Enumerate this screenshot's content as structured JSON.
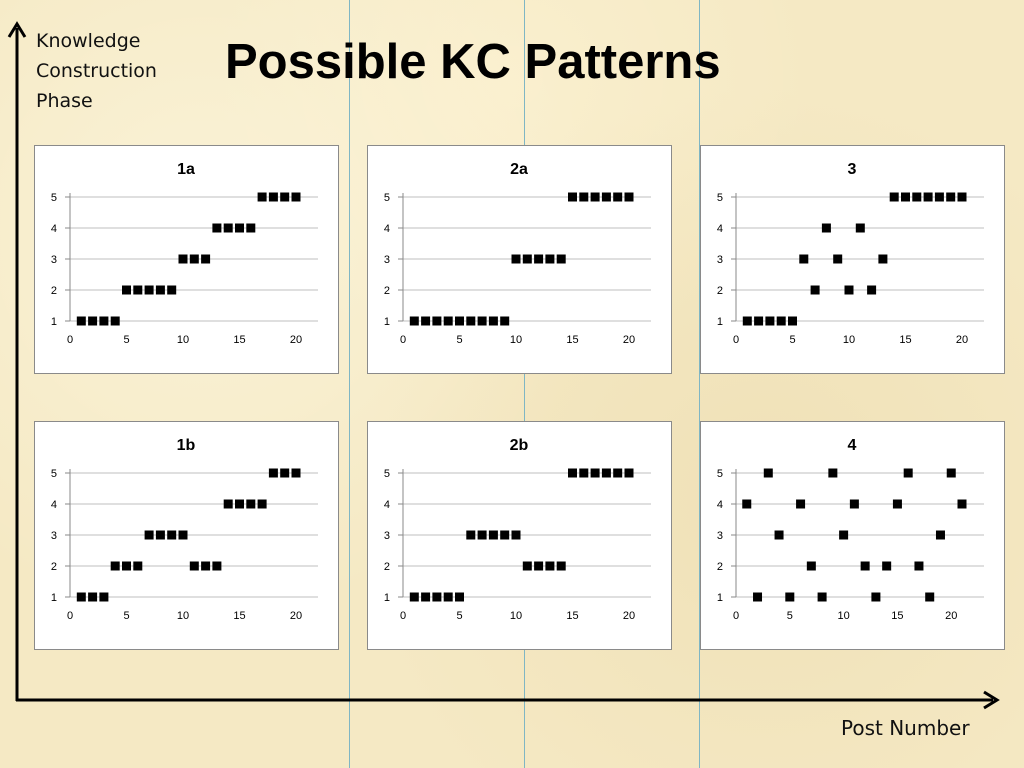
{
  "page": {
    "title": "Possible KC Patterns",
    "y_axis_label": "Knowledge\nConstruction\nPhase",
    "x_axis_label": "Post Number"
  },
  "colors": {
    "background": "#f5e9c4",
    "marker": "#000000",
    "gridline": "#bfbfbf",
    "guide_line": "#7fb6c4"
  },
  "chart_data": [
    {
      "type": "scatter",
      "title": "1a",
      "xlim": [
        0,
        20
      ],
      "ylim": [
        1,
        5
      ],
      "xticks": [
        0,
        5,
        10,
        15,
        20
      ],
      "yticks": [
        1,
        2,
        3,
        4,
        5
      ],
      "grid": "horizontal",
      "marker": "square",
      "series": [
        {
          "x": [
            1,
            2,
            3,
            4,
            5,
            6,
            7,
            8,
            9,
            10,
            11,
            12,
            13,
            14,
            15,
            16,
            17,
            18,
            19,
            20
          ],
          "y": [
            1,
            1,
            1,
            1,
            2,
            2,
            2,
            2,
            2,
            3,
            3,
            3,
            4,
            4,
            4,
            4,
            5,
            5,
            5,
            5
          ]
        }
      ]
    },
    {
      "type": "scatter",
      "title": "2a",
      "xlim": [
        0,
        20
      ],
      "ylim": [
        1,
        5
      ],
      "xticks": [
        0,
        5,
        10,
        15,
        20
      ],
      "yticks": [
        1,
        2,
        3,
        4,
        5
      ],
      "grid": "horizontal",
      "marker": "square",
      "series": [
        {
          "x": [
            1,
            2,
            3,
            4,
            5,
            6,
            7,
            8,
            9,
            10,
            11,
            12,
            13,
            14,
            15,
            16,
            17,
            18,
            19,
            20
          ],
          "y": [
            1,
            1,
            1,
            1,
            1,
            1,
            1,
            1,
            1,
            3,
            3,
            3,
            3,
            3,
            5,
            5,
            5,
            5,
            5,
            5
          ]
        }
      ]
    },
    {
      "type": "scatter",
      "title": "3",
      "xlim": [
        0,
        20
      ],
      "ylim": [
        1,
        5
      ],
      "xticks": [
        0,
        5,
        10,
        15,
        20
      ],
      "yticks": [
        1,
        2,
        3,
        4,
        5
      ],
      "grid": "horizontal",
      "marker": "square",
      "series": [
        {
          "x": [
            1,
            2,
            3,
            4,
            5,
            6,
            7,
            8,
            9,
            10,
            11,
            12,
            13,
            14,
            15,
            16,
            17,
            18,
            19,
            20
          ],
          "y": [
            1,
            1,
            1,
            1,
            1,
            3,
            2,
            4,
            3,
            2,
            4,
            2,
            3,
            5,
            5,
            5,
            5,
            5,
            5,
            5
          ]
        }
      ]
    },
    {
      "type": "scatter",
      "title": "1b",
      "xlim": [
        0,
        20
      ],
      "ylim": [
        1,
        5
      ],
      "xticks": [
        0,
        5,
        10,
        15,
        20
      ],
      "yticks": [
        1,
        2,
        3,
        4,
        5
      ],
      "grid": "horizontal",
      "marker": "square",
      "series": [
        {
          "x": [
            1,
            2,
            3,
            4,
            5,
            6,
            7,
            8,
            9,
            10,
            11,
            12,
            13,
            14,
            15,
            16,
            17,
            18,
            19,
            20
          ],
          "y": [
            1,
            1,
            1,
            2,
            2,
            2,
            3,
            3,
            3,
            3,
            2,
            2,
            2,
            4,
            4,
            4,
            4,
            5,
            5,
            5
          ]
        }
      ]
    },
    {
      "type": "scatter",
      "title": "2b",
      "xlim": [
        0,
        20
      ],
      "ylim": [
        1,
        5
      ],
      "xticks": [
        0,
        5,
        10,
        15,
        20
      ],
      "yticks": [
        1,
        2,
        3,
        4,
        5
      ],
      "grid": "horizontal",
      "marker": "square",
      "series": [
        {
          "x": [
            1,
            2,
            3,
            4,
            5,
            6,
            7,
            8,
            9,
            10,
            11,
            12,
            13,
            14,
            15,
            16,
            17,
            18,
            19,
            20
          ],
          "y": [
            1,
            1,
            1,
            1,
            1,
            3,
            3,
            3,
            3,
            3,
            2,
            2,
            2,
            2,
            5,
            5,
            5,
            5,
            5,
            5
          ]
        }
      ]
    },
    {
      "type": "scatter",
      "title": "4",
      "xlim": [
        0,
        21
      ],
      "ylim": [
        1,
        5
      ],
      "xticks": [
        0,
        5,
        10,
        15,
        20
      ],
      "yticks": [
        1,
        2,
        3,
        4,
        5
      ],
      "grid": "horizontal",
      "marker": "square",
      "series": [
        {
          "x": [
            1,
            2,
            3,
            4,
            5,
            6,
            7,
            8,
            9,
            10,
            11,
            12,
            13,
            14,
            15,
            16,
            17,
            18,
            19,
            20,
            21
          ],
          "y": [
            4,
            1,
            5,
            3,
            1,
            4,
            2,
            1,
            5,
            3,
            4,
            2,
            1,
            2,
            4,
            5,
            2,
            1,
            3,
            5,
            4
          ]
        }
      ]
    }
  ]
}
